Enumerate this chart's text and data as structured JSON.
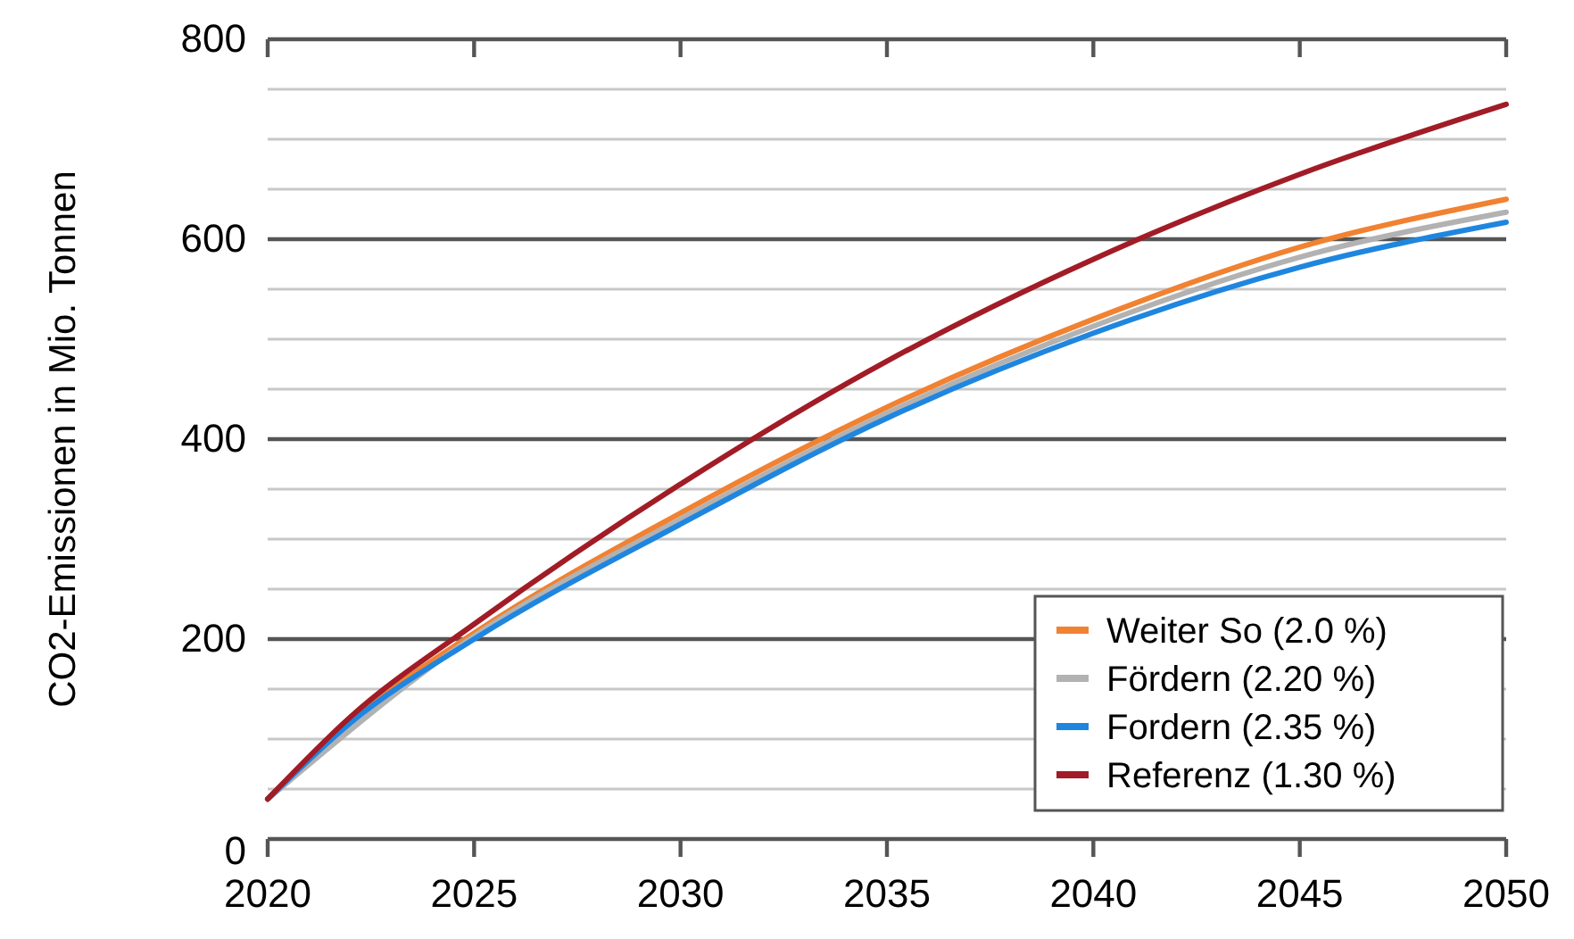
{
  "chart_data": {
    "type": "line",
    "ylabel": "CO2-Emissionen in Mio. Tonnen",
    "x": [
      2020,
      2022,
      2025,
      2030,
      2035,
      2040,
      2045,
      2050
    ],
    "series": [
      {
        "name": "Weiter So (2.0 %)",
        "color": "#f08232",
        "values": [
          40,
          118,
          206,
          326,
          432,
          520,
          592,
          640
        ]
      },
      {
        "name": "Fördern (2.20 %)",
        "color": "#b2b2b2",
        "values": [
          40,
          null,
          203,
          320,
          426,
          513,
          582,
          627
        ]
      },
      {
        "name": "Fordern (2.35 %)",
        "color": "#1f86e0",
        "values": [
          40,
          116,
          200,
          315,
          421,
          506,
          572,
          617
        ]
      },
      {
        "name": "Referenz (1.30 %)",
        "color": "#a11c26",
        "values": [
          40,
          122,
          215,
          355,
          478,
          580,
          665,
          735
        ]
      }
    ],
    "xlim": [
      2020,
      2050
    ],
    "xticks": [
      2020,
      2025,
      2030,
      2035,
      2040,
      2045,
      2050
    ],
    "ylim": [
      0,
      800
    ],
    "yticks": [
      0,
      {
        "value": 50,
        "label": null
      },
      {
        "value": 100,
        "label": null
      },
      {
        "value": 150,
        "label": null
      },
      200,
      {
        "value": 250,
        "label": null
      },
      {
        "value": 300,
        "label": null
      },
      {
        "value": 350,
        "label": null
      },
      400,
      {
        "value": 450,
        "label": null
      },
      {
        "value": 500,
        "label": null
      },
      {
        "value": 550,
        "label": null
      },
      600,
      {
        "value": 650,
        "label": null
      },
      {
        "value": 700,
        "label": null
      },
      {
        "value": 750,
        "label": null
      },
      800
    ],
    "grid": "y",
    "legend": "bottom right",
    "marker": "none",
    "line_style": "solid"
  }
}
